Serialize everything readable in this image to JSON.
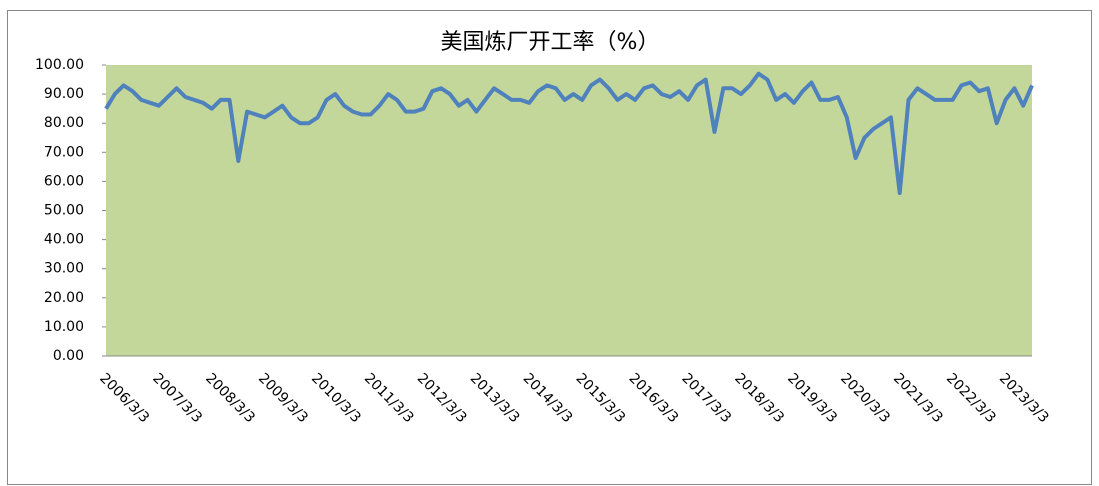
{
  "chart_data": {
    "type": "line",
    "title": "美国炼厂开工率（%）",
    "categories": [
      "2006/3/3",
      null,
      null,
      null,
      null,
      null,
      "2007/3/3",
      null,
      null,
      null,
      null,
      null,
      "2008/3/3",
      null,
      null,
      null,
      null,
      null,
      "2009/3/3",
      null,
      null,
      null,
      null,
      null,
      "2010/3/3",
      null,
      null,
      null,
      null,
      null,
      "2011/3/3",
      null,
      null,
      null,
      null,
      null,
      "2012/3/3",
      null,
      null,
      null,
      null,
      null,
      "2013/3/3",
      null,
      null,
      null,
      null,
      null,
      "2014/3/3",
      null,
      null,
      null,
      null,
      null,
      "2015/3/3",
      null,
      null,
      null,
      null,
      null,
      "2016/3/3",
      null,
      null,
      null,
      null,
      null,
      "2017/3/3",
      null,
      null,
      null,
      null,
      null,
      "2018/3/3",
      null,
      null,
      null,
      null,
      null,
      "2019/3/3",
      null,
      null,
      null,
      null,
      null,
      "2020/3/3",
      null,
      null,
      null,
      null,
      null,
      "2021/3/3",
      null,
      null,
      null,
      null,
      null,
      "2022/3/3",
      null,
      null,
      null,
      null,
      null,
      "2023/3/3",
      null,
      null,
      null
    ],
    "series": [
      {
        "color": "#4f81bd",
        "values": [
          85,
          90,
          93,
          91,
          88,
          87,
          86,
          89,
          92,
          89,
          88,
          87,
          85,
          88,
          88,
          67,
          84,
          83,
          82,
          84,
          86,
          82,
          80,
          80,
          82,
          88,
          90,
          86,
          84,
          83,
          83,
          86,
          90,
          88,
          84,
          84,
          85,
          91,
          92,
          90,
          86,
          88,
          84,
          88,
          92,
          90,
          88,
          88,
          87,
          91,
          93,
          92,
          88,
          90,
          88,
          93,
          95,
          92,
          88,
          90,
          88,
          92,
          93,
          90,
          89,
          91,
          88,
          93,
          95,
          77,
          92,
          92,
          90,
          93,
          97,
          95,
          88,
          90,
          87,
          91,
          94,
          88,
          88,
          89,
          82,
          68,
          75,
          78,
          80,
          82,
          56,
          88,
          92,
          90,
          88,
          88,
          88,
          93,
          94,
          91,
          92,
          80,
          88,
          92,
          86,
          93
        ]
      }
    ],
    "ylim": [
      0,
      100
    ],
    "yticks": [
      {
        "value": 0,
        "label": "0.00"
      },
      {
        "value": 10,
        "label": "10.00"
      },
      {
        "value": 20,
        "label": "20.00"
      },
      {
        "value": 30,
        "label": "30.00"
      },
      {
        "value": 40,
        "label": "40.00"
      },
      {
        "value": 50,
        "label": "50.00"
      },
      {
        "value": 60,
        "label": "60.00"
      },
      {
        "value": 70,
        "label": "70.00"
      },
      {
        "value": 80,
        "label": "80.00"
      },
      {
        "value": 90,
        "label": "90.00"
      },
      {
        "value": 100,
        "label": "100.00"
      }
    ],
    "plot_background": "#c4d79b",
    "grid": false
  }
}
